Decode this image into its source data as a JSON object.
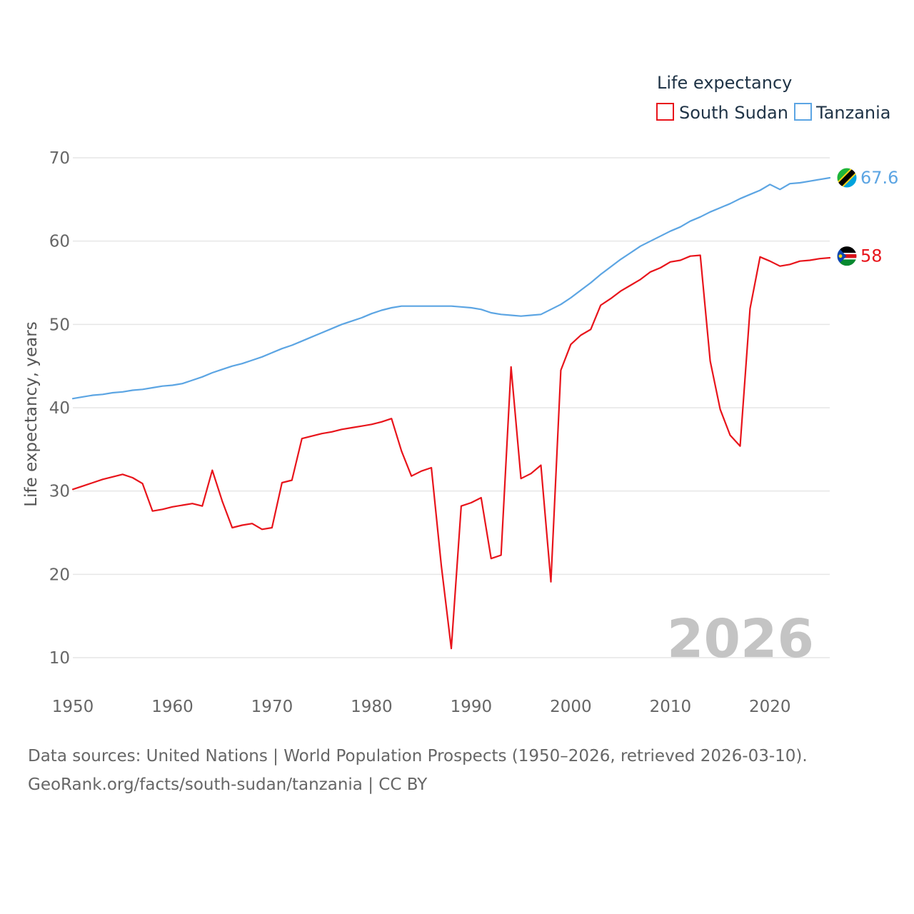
{
  "chart_data": {
    "type": "line",
    "legend_title": "Life expectancy",
    "ylabel": "Life expectancy, years",
    "xlabel": "",
    "year_label": "2026",
    "xlim": [
      1950,
      2026
    ],
    "ylim": [
      10,
      70
    ],
    "x_ticks": [
      1950,
      1960,
      1970,
      1980,
      1990,
      2000,
      2010,
      2020
    ],
    "y_ticks": [
      10,
      20,
      30,
      40,
      50,
      60,
      70
    ],
    "grid": true,
    "legend_position": "top-right",
    "series": [
      {
        "name": "South Sudan",
        "color": "#e8141b",
        "flag_icon": "south-sudan-flag-icon",
        "end_label": "58",
        "points": [
          [
            1950,
            30.2
          ],
          [
            1951,
            30.6
          ],
          [
            1952,
            31.0
          ],
          [
            1953,
            31.4
          ],
          [
            1954,
            31.7
          ],
          [
            1955,
            32.0
          ],
          [
            1956,
            31.6
          ],
          [
            1957,
            30.9
          ],
          [
            1958,
            27.6
          ],
          [
            1959,
            27.8
          ],
          [
            1960,
            28.1
          ],
          [
            1961,
            28.3
          ],
          [
            1962,
            28.5
          ],
          [
            1963,
            28.2
          ],
          [
            1964,
            32.5
          ],
          [
            1965,
            28.8
          ],
          [
            1966,
            25.6
          ],
          [
            1967,
            25.9
          ],
          [
            1968,
            26.1
          ],
          [
            1969,
            25.4
          ],
          [
            1970,
            25.6
          ],
          [
            1971,
            31.0
          ],
          [
            1972,
            31.3
          ],
          [
            1973,
            36.3
          ],
          [
            1974,
            36.6
          ],
          [
            1975,
            36.9
          ],
          [
            1976,
            37.1
          ],
          [
            1977,
            37.4
          ],
          [
            1978,
            37.6
          ],
          [
            1979,
            37.8
          ],
          [
            1980,
            38.0
          ],
          [
            1981,
            38.3
          ],
          [
            1982,
            38.7
          ],
          [
            1983,
            34.8
          ],
          [
            1984,
            31.8
          ],
          [
            1985,
            32.4
          ],
          [
            1986,
            32.8
          ],
          [
            1987,
            21.0
          ],
          [
            1988,
            11.1
          ],
          [
            1989,
            28.2
          ],
          [
            1990,
            28.6
          ],
          [
            1991,
            29.2
          ],
          [
            1992,
            21.9
          ],
          [
            1993,
            22.3
          ],
          [
            1994,
            44.9
          ],
          [
            1995,
            31.5
          ],
          [
            1996,
            32.1
          ],
          [
            1997,
            33.1
          ],
          [
            1998,
            19.1
          ],
          [
            1999,
            44.5
          ],
          [
            2000,
            47.6
          ],
          [
            2001,
            48.7
          ],
          [
            2002,
            49.4
          ],
          [
            2003,
            52.3
          ],
          [
            2004,
            53.1
          ],
          [
            2005,
            54.0
          ],
          [
            2006,
            54.7
          ],
          [
            2007,
            55.4
          ],
          [
            2008,
            56.3
          ],
          [
            2009,
            56.8
          ],
          [
            2010,
            57.5
          ],
          [
            2011,
            57.7
          ],
          [
            2012,
            58.2
          ],
          [
            2013,
            58.3
          ],
          [
            2014,
            45.6
          ],
          [
            2015,
            39.8
          ],
          [
            2016,
            36.7
          ],
          [
            2017,
            35.4
          ],
          [
            2018,
            51.9
          ],
          [
            2019,
            58.1
          ],
          [
            2020,
            57.6
          ],
          [
            2021,
            57.0
          ],
          [
            2022,
            57.2
          ],
          [
            2023,
            57.6
          ],
          [
            2024,
            57.7
          ],
          [
            2025,
            57.9
          ],
          [
            2026,
            58.0
          ]
        ]
      },
      {
        "name": "Tanzania",
        "color": "#5ca5e3",
        "flag_icon": "tanzania-flag-icon",
        "end_label": "67.6",
        "points": [
          [
            1950,
            41.1
          ],
          [
            1951,
            41.3
          ],
          [
            1952,
            41.5
          ],
          [
            1953,
            41.6
          ],
          [
            1954,
            41.8
          ],
          [
            1955,
            41.9
          ],
          [
            1956,
            42.1
          ],
          [
            1957,
            42.2
          ],
          [
            1958,
            42.4
          ],
          [
            1959,
            42.6
          ],
          [
            1960,
            42.7
          ],
          [
            1961,
            42.9
          ],
          [
            1962,
            43.3
          ],
          [
            1963,
            43.7
          ],
          [
            1964,
            44.2
          ],
          [
            1965,
            44.6
          ],
          [
            1966,
            45.0
          ],
          [
            1967,
            45.3
          ],
          [
            1968,
            45.7
          ],
          [
            1969,
            46.1
          ],
          [
            1970,
            46.6
          ],
          [
            1971,
            47.1
          ],
          [
            1972,
            47.5
          ],
          [
            1973,
            48.0
          ],
          [
            1974,
            48.5
          ],
          [
            1975,
            49.0
          ],
          [
            1976,
            49.5
          ],
          [
            1977,
            50.0
          ],
          [
            1978,
            50.4
          ],
          [
            1979,
            50.8
          ],
          [
            1980,
            51.3
          ],
          [
            1981,
            51.7
          ],
          [
            1982,
            52.0
          ],
          [
            1983,
            52.2
          ],
          [
            1984,
            52.2
          ],
          [
            1985,
            52.2
          ],
          [
            1986,
            52.2
          ],
          [
            1987,
            52.2
          ],
          [
            1988,
            52.2
          ],
          [
            1989,
            52.1
          ],
          [
            1990,
            52.0
          ],
          [
            1991,
            51.8
          ],
          [
            1992,
            51.4
          ],
          [
            1993,
            51.2
          ],
          [
            1994,
            51.1
          ],
          [
            1995,
            51.0
          ],
          [
            1996,
            51.1
          ],
          [
            1997,
            51.2
          ],
          [
            1998,
            51.8
          ],
          [
            1999,
            52.4
          ],
          [
            2000,
            53.2
          ],
          [
            2001,
            54.1
          ],
          [
            2002,
            55.0
          ],
          [
            2003,
            56.0
          ],
          [
            2004,
            56.9
          ],
          [
            2005,
            57.8
          ],
          [
            2006,
            58.6
          ],
          [
            2007,
            59.4
          ],
          [
            2008,
            60.0
          ],
          [
            2009,
            60.6
          ],
          [
            2010,
            61.2
          ],
          [
            2011,
            61.7
          ],
          [
            2012,
            62.4
          ],
          [
            2013,
            62.9
          ],
          [
            2014,
            63.5
          ],
          [
            2015,
            64.0
          ],
          [
            2016,
            64.5
          ],
          [
            2017,
            65.1
          ],
          [
            2018,
            65.6
          ],
          [
            2019,
            66.1
          ],
          [
            2020,
            66.8
          ],
          [
            2021,
            66.2
          ],
          [
            2022,
            66.9
          ],
          [
            2023,
            67.0
          ],
          [
            2024,
            67.2
          ],
          [
            2025,
            67.4
          ],
          [
            2026,
            67.6
          ]
        ]
      }
    ]
  },
  "source": {
    "line1": "Data sources: United Nations | World Population Prospects (1950–2026, retrieved 2026-03-10).",
    "line2": "GeoRank.org/facts/south-sudan/tanzania | CC BY"
  }
}
